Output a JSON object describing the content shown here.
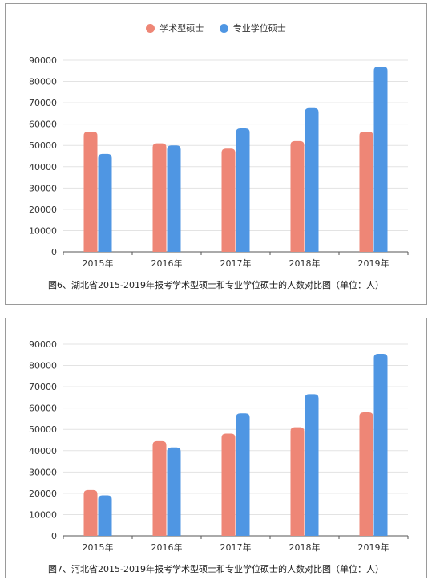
{
  "colors": {
    "academic": "#ee8676",
    "professional": "#4f96e3"
  },
  "chart_data": [
    {
      "type": "bar",
      "title": "",
      "caption": "图6、湖北省2015-2019年报考学术型硕士和专业学位硕士的人数对比图（单位：人）",
      "legend": {
        "position": "top-center",
        "items": [
          "学术型硕士",
          "专业学位硕士"
        ]
      },
      "categories": [
        "2015年",
        "2016年",
        "2017年",
        "2018年",
        "2019年"
      ],
      "series": [
        {
          "name": "学术型硕士",
          "values": [
            56500,
            51000,
            48500,
            52000,
            56500
          ]
        },
        {
          "name": "专业学位硕士",
          "values": [
            46000,
            50000,
            58000,
            67500,
            87000
          ]
        }
      ],
      "ylim": [
        0,
        90000
      ],
      "yticks": [
        "0",
        "10000",
        "20000",
        "30000",
        "40000",
        "50000",
        "60000",
        "70000",
        "80000",
        "90000"
      ],
      "grid": true
    },
    {
      "type": "bar",
      "title": "",
      "caption": "图7、河北省2015-2019年报考学术型硕士和专业学位硕士的人数对比图（单位：人）",
      "legend": null,
      "categories": [
        "2015年",
        "2016年",
        "2017年",
        "2018年",
        "2019年"
      ],
      "series": [
        {
          "values": [
            21500,
            44500,
            48000,
            51000,
            58000
          ]
        },
        {
          "values": [
            19000,
            41500,
            57500,
            66500,
            85500
          ]
        }
      ],
      "ylim": [
        0,
        90000
      ],
      "yticks": [
        "0",
        "10000",
        "20000",
        "30000",
        "40000",
        "50000",
        "60000",
        "70000",
        "80000",
        "90000"
      ],
      "grid": true
    }
  ]
}
